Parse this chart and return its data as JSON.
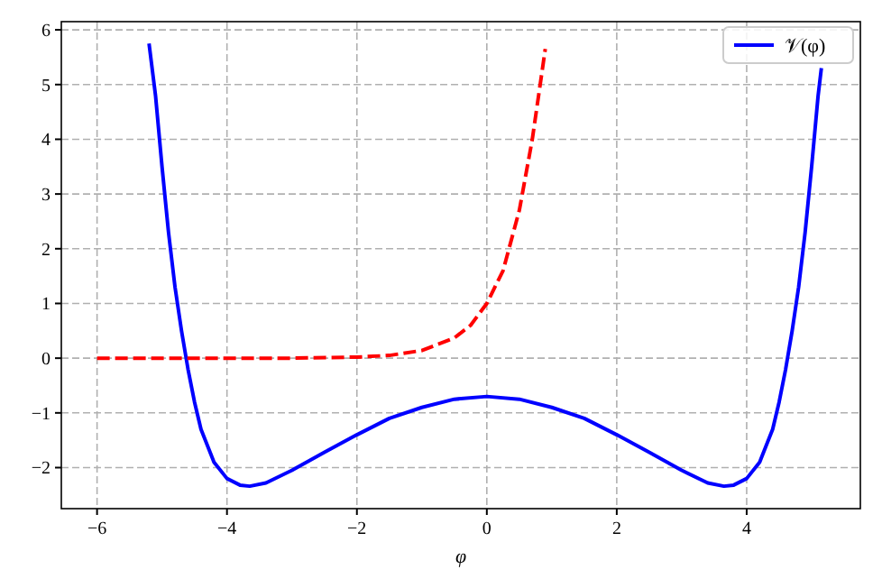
{
  "chart_data": {
    "type": "line",
    "xlabel": "φ",
    "xlim": [
      -6.55,
      5.75
    ],
    "xticks": [
      -6,
      -4,
      -2,
      0,
      2,
      4
    ],
    "ylim": [
      -2.75,
      6.15
    ],
    "yticks": [
      -2,
      -1,
      0,
      1,
      2,
      3,
      4,
      5,
      6
    ],
    "grid": true,
    "legend": "top right",
    "series": [
      {
        "name": "𝒱(φ)",
        "color": "#0000ff",
        "line_style": "solid",
        "x": [
          -5.2,
          -5.1,
          -5.0,
          -4.9,
          -4.8,
          -4.7,
          -4.6,
          -4.5,
          -4.4,
          -4.2,
          -4.0,
          -3.8,
          -3.65,
          -3.4,
          -3.0,
          -2.5,
          -2.0,
          -1.5,
          -1.0,
          -0.5,
          0,
          0.5,
          1.0,
          1.5,
          2.0,
          2.5,
          3.0,
          3.4,
          3.65,
          3.8,
          4.0,
          4.2,
          4.4,
          4.5,
          4.6,
          4.7,
          4.8,
          4.9,
          5.0,
          5.1,
          5.15
        ],
        "values": [
          5.75,
          4.8,
          3.5,
          2.3,
          1.3,
          0.5,
          -0.2,
          -0.8,
          -1.3,
          -1.9,
          -2.2,
          -2.32,
          -2.34,
          -2.28,
          -2.05,
          -1.72,
          -1.4,
          -1.1,
          -0.9,
          -0.75,
          -0.7,
          -0.75,
          -0.9,
          -1.1,
          -1.4,
          -1.72,
          -2.05,
          -2.28,
          -2.34,
          -2.32,
          -2.2,
          -1.9,
          -1.3,
          -0.8,
          -0.2,
          0.5,
          1.3,
          2.3,
          3.5,
          4.8,
          5.3
        ]
      },
      {
        "color": "#ff0000",
        "line_style": "dashed",
        "x": [
          -6,
          -3,
          -2,
          -1.5,
          -1,
          -0.5,
          -0.25,
          0,
          0.25,
          0.5,
          0.7,
          0.9
        ],
        "values": [
          0,
          0,
          0.02,
          0.05,
          0.14,
          0.37,
          0.6,
          1.0,
          1.6,
          2.7,
          4.0,
          5.65
        ]
      }
    ]
  }
}
